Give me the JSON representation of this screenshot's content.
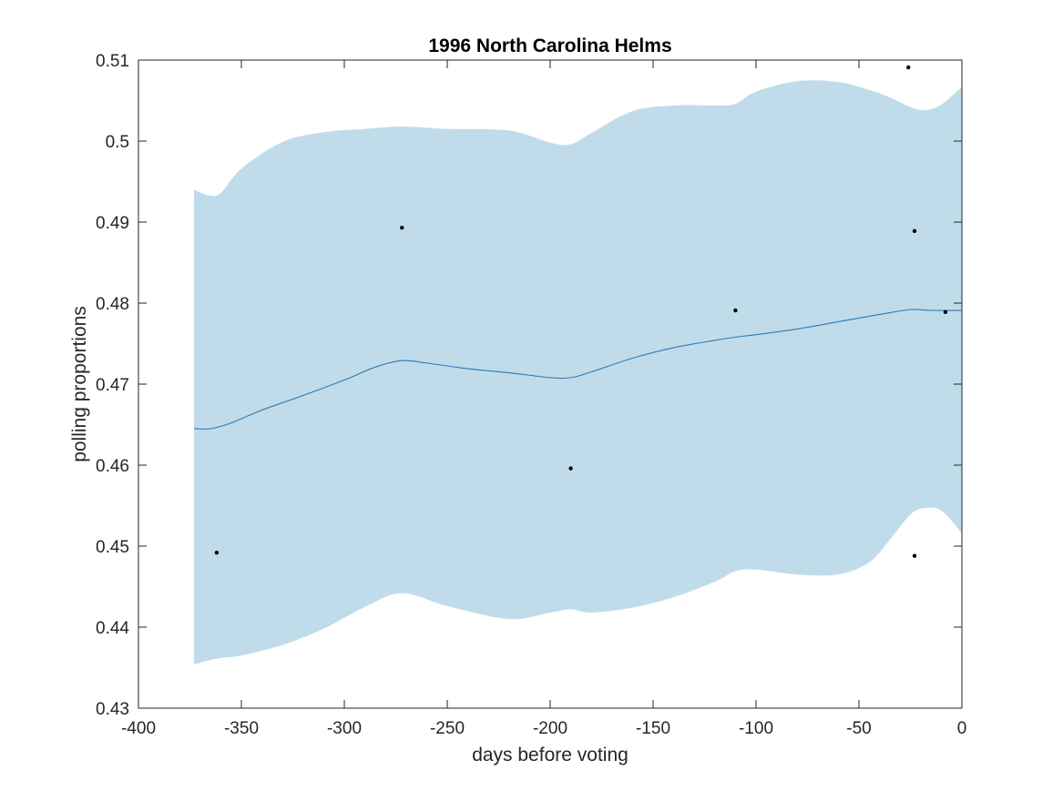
{
  "chart_data": {
    "type": "line",
    "title": "1996 North Carolina Helms",
    "xlabel": "days before voting",
    "ylabel": "polling proportions",
    "xlim": [
      -400,
      0
    ],
    "ylim": [
      0.43,
      0.51
    ],
    "xticks": [
      -400,
      -350,
      -300,
      -250,
      -200,
      -150,
      -100,
      -50,
      0
    ],
    "xtick_labels": [
      "-400",
      "-350",
      "-300",
      "-250",
      "-200",
      "-150",
      "-100",
      "-50",
      "0"
    ],
    "yticks": [
      0.43,
      0.44,
      0.45,
      0.46,
      0.47,
      0.48,
      0.49,
      0.5,
      0.51
    ],
    "ytick_labels": [
      "0.43",
      "0.44",
      "0.45",
      "0.46",
      "0.47",
      "0.48",
      "0.49",
      "0.5",
      "0.51"
    ],
    "grid": false,
    "colors": {
      "band": "#c0dcea",
      "line": "#2c79bd",
      "points": "#000000",
      "axes": "#262626"
    },
    "series": [
      {
        "kind": "line",
        "x": [
          -373,
          -365,
          -355,
          -340,
          -320,
          -300,
          -285,
          -272,
          -260,
          -240,
          -220,
          -200,
          -190,
          -180,
          -160,
          -140,
          -120,
          -110,
          -100,
          -80,
          -60,
          -40,
          -25,
          -15,
          0
        ],
        "y": [
          0.4645,
          0.4645,
          0.4652,
          0.4668,
          0.4686,
          0.4705,
          0.4721,
          0.4729,
          0.4726,
          0.4719,
          0.4714,
          0.4708,
          0.4708,
          0.4715,
          0.4732,
          0.4745,
          0.4754,
          0.4758,
          0.4761,
          0.4768,
          0.4777,
          0.4786,
          0.4792,
          0.4791,
          0.4791
        ]
      },
      {
        "kind": "band",
        "x": [
          -373,
          -366,
          -360,
          -350,
          -330,
          -310,
          -290,
          -272,
          -250,
          -220,
          -200,
          -190,
          -180,
          -160,
          -140,
          -120,
          -110,
          -100,
          -80,
          -60,
          -45,
          -35,
          -25,
          -18,
          -10,
          0
        ],
        "upper": [
          0.494,
          0.4933,
          0.4936,
          0.4966,
          0.4999,
          0.5011,
          0.5015,
          0.5018,
          0.5015,
          0.5013,
          0.4998,
          0.4996,
          0.501,
          0.5037,
          0.5044,
          0.5044,
          0.5046,
          0.5061,
          0.5074,
          0.5073,
          0.5063,
          0.5054,
          0.5042,
          0.5038,
          0.5045,
          0.5067
        ],
        "lower": [
          0.4354,
          0.4359,
          0.4362,
          0.4365,
          0.4378,
          0.4398,
          0.4425,
          0.4442,
          0.4426,
          0.441,
          0.4418,
          0.4422,
          0.4418,
          0.4424,
          0.4437,
          0.4456,
          0.4469,
          0.4471,
          0.4465,
          0.4465,
          0.448,
          0.4508,
          0.4539,
          0.4547,
          0.4544,
          0.4516
        ]
      },
      {
        "kind": "scatter",
        "x": [
          -362,
          -272,
          -190,
          -110,
          -26,
          -23,
          -23,
          -8
        ],
        "y": [
          0.4492,
          0.4893,
          0.4596,
          0.4791,
          0.5091,
          0.4889,
          0.4488,
          0.4789
        ]
      }
    ]
  }
}
